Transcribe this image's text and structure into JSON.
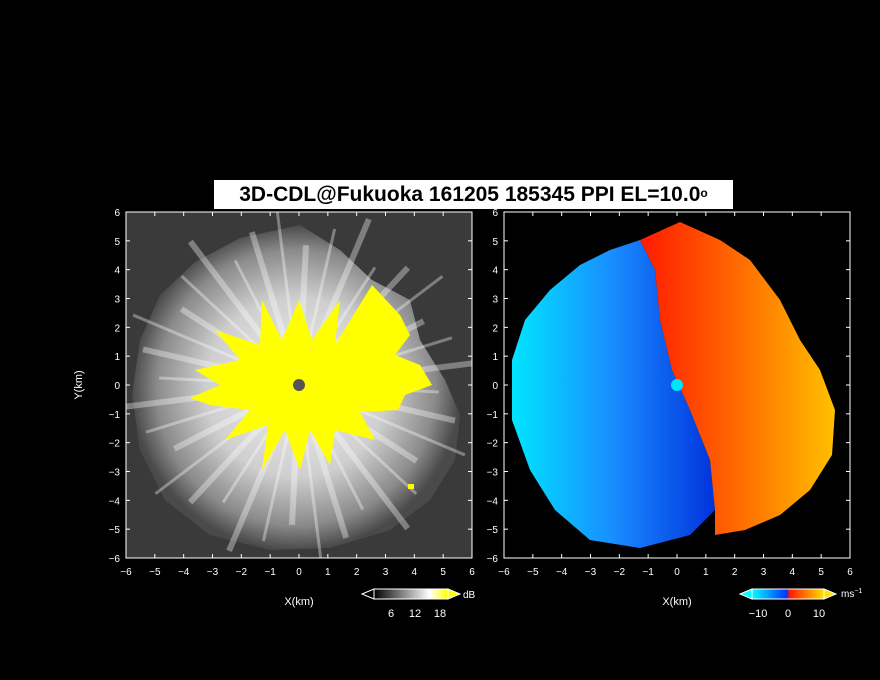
{
  "title": {
    "main": "3D-CDL@Fukuoka 161205 185345 PPI EL=10.0",
    "degree": "o"
  },
  "panels": {
    "left": {
      "xlabel": "X(km)",
      "ylabel": "Y(km)"
    },
    "right": {
      "xlabel": "X(km)"
    }
  },
  "colorbars": {
    "reflectivity": {
      "unit": "dB",
      "ticks": [
        "6",
        "12",
        "18"
      ]
    },
    "velocity": {
      "unit": "ms",
      "unit_exp": "−1",
      "ticks": [
        "−10",
        "0",
        "10"
      ]
    }
  },
  "chart_data": [
    {
      "type": "heatmap",
      "field": "reflectivity",
      "xlabel": "X(km)",
      "ylabel": "Y(km)",
      "xlim": [
        -6,
        6
      ],
      "ylim": [
        -6,
        6
      ],
      "x_ticks": [
        -6,
        -5,
        -4,
        -3,
        -2,
        -1,
        0,
        1,
        2,
        3,
        4,
        5,
        6
      ],
      "y_ticks": [
        -6,
        -5,
        -4,
        -3,
        -2,
        -1,
        0,
        1,
        2,
        3,
        4,
        5,
        6
      ],
      "colorscale": {
        "unit": "dB",
        "range": [
          0,
          20
        ],
        "ticks": [
          6,
          12,
          18
        ],
        "colors": [
          "#000000",
          "#ffffff",
          "#ffff00"
        ]
      },
      "features": {
        "saturated_core_radius_km": 3.0,
        "echo_radius_km": 5.5,
        "radar_site": [
          0,
          0
        ]
      }
    },
    {
      "type": "heatmap",
      "field": "radial_velocity",
      "xlabel": "X(km)",
      "xlim": [
        -6,
        6
      ],
      "ylim": [
        -6,
        6
      ],
      "x_ticks": [
        -6,
        -5,
        -4,
        -3,
        -2,
        -1,
        0,
        1,
        2,
        3,
        4,
        5,
        6
      ],
      "y_ticks": [
        -6,
        -5,
        -4,
        -3,
        -2,
        -1,
        0,
        1,
        2,
        3,
        4,
        5,
        6
      ],
      "colorscale": {
        "unit": "ms−1",
        "range": [
          -14,
          14
        ],
        "ticks": [
          -10,
          0,
          10
        ],
        "colors": [
          "#00ffff",
          "#0044ff",
          "#ff2200",
          "#ffcc00"
        ]
      },
      "features": {
        "zero_line": "roughly along x=0",
        "approaching_side": "west",
        "receding_side": "east"
      }
    }
  ]
}
